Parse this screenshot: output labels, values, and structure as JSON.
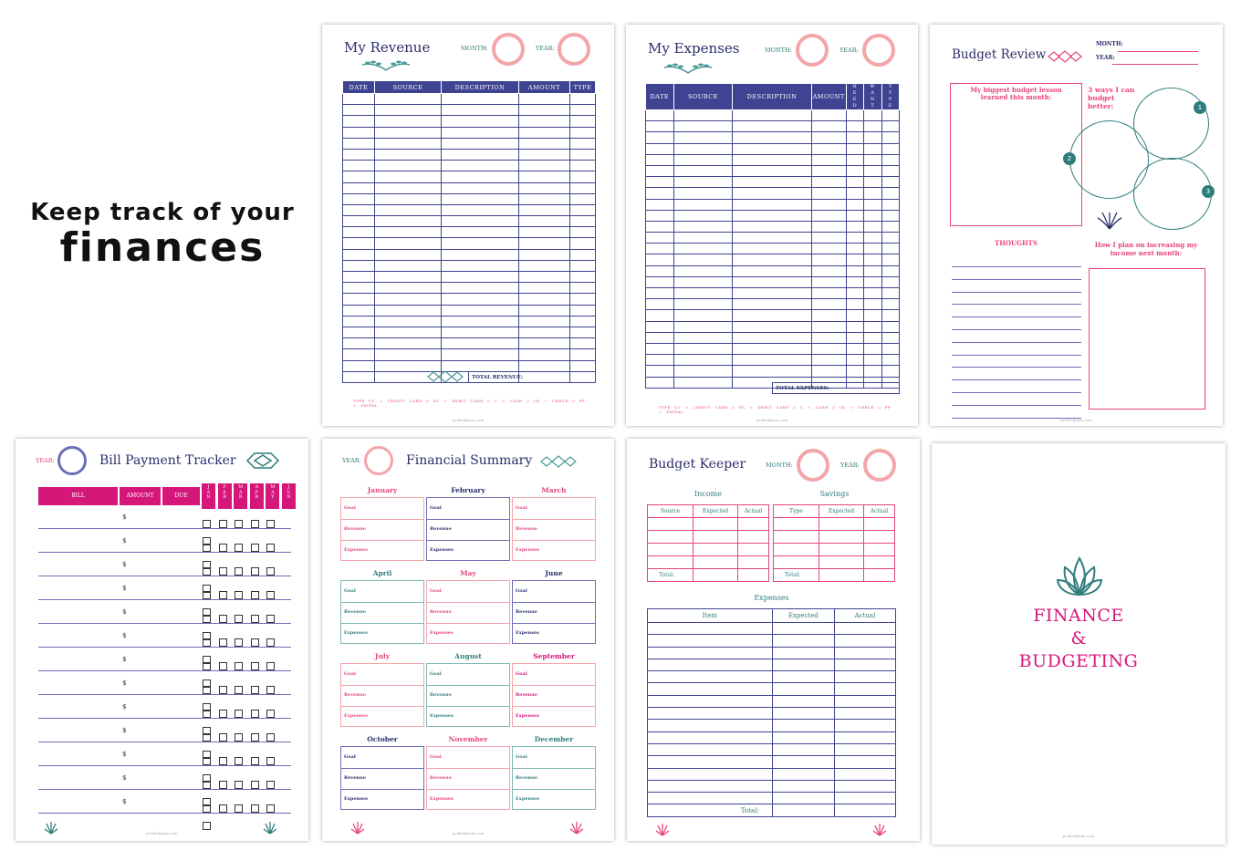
{
  "headline": {
    "line1": "Keep track of your",
    "line2": "finances"
  },
  "revenue": {
    "title": "My Revenue",
    "month_label": "MONTH:",
    "year_label": "YEAR:",
    "columns": [
      "DATE",
      "SOURCE",
      "DESCRIPTION",
      "AMOUNT",
      "TYPE"
    ],
    "total_label": "TOTAL REVENUE:",
    "legend": [
      "TYPE",
      "CC = CREDIT CARD",
      "//",
      "DC = DEBIT CARD",
      "//",
      "C = CASH",
      "//",
      "CK = CHECK",
      "//",
      "PP = PAYPAL"
    ],
    "url": "pickledplum.com"
  },
  "expenses": {
    "title": "My Expenses",
    "month_label": "MONTH:",
    "year_label": "YEAR:",
    "columns": [
      "DATE",
      "SOURCE",
      "DESCRIPTION",
      "AMOUNT",
      "NEED",
      "WANT",
      "TYPE"
    ],
    "total_label": "TOTAL EXPENSES:",
    "legend": [
      "TYPE",
      "CC = CREDIT CARD",
      "//",
      "DC = DEBIT CARD",
      "//",
      "C = CASH",
      "//",
      "CK = CHECK",
      "//",
      "PP = PAYPAL"
    ],
    "url": "pickledplum.com"
  },
  "review": {
    "title": "Budget Review",
    "month_label": "MONTH:",
    "year_label": "YEAR:",
    "lesson": "My biggest budget lesson learned this month:",
    "ways": "3 ways I can budget better:",
    "nums": [
      "1",
      "2",
      "3"
    ],
    "thoughts": "THOUGHTS",
    "plan": "How I plan on increasing my income next month:",
    "url": "pickledplum.com"
  },
  "bills": {
    "title": "Bill Payment Tracker",
    "year_label": "YEAR:",
    "columns": [
      "BILL",
      "AMOUNT",
      "DUE"
    ],
    "months": [
      "JAN",
      "FEB",
      "MAR",
      "APR",
      "MAY",
      "JUN"
    ],
    "currency": "$",
    "url": "pickledplum.com"
  },
  "summary": {
    "title": "Financial Summary",
    "year_label": "YEAR:",
    "months": [
      "January",
      "February",
      "March",
      "April",
      "May",
      "June",
      "July",
      "August",
      "September",
      "October",
      "November",
      "December"
    ],
    "rows": [
      "Goal",
      "Revenue",
      "Expenses"
    ],
    "url": "pickledplum.com"
  },
  "keeper": {
    "title": "Budget Keeper",
    "month_label": "MONTH:",
    "year_label": "YEAR:",
    "income": "Income",
    "savings": "Savings",
    "income_cols": [
      "Source",
      "Expected",
      "Actual"
    ],
    "savings_cols": [
      "Type",
      "Expected",
      "Actual"
    ],
    "total": "Total:",
    "expenses": "Expenses",
    "exp_cols": [
      "Item",
      "Expected",
      "Actual"
    ],
    "url": "pickledplum.com"
  },
  "cover": {
    "line1": "FINANCE",
    "line2": "&",
    "line3": "BUDGETING"
  },
  "colors": {
    "navy": "#3e4491",
    "teal": "#2f7d7b",
    "pink": "#f4a5aa",
    "magenta": "#d6177a"
  }
}
